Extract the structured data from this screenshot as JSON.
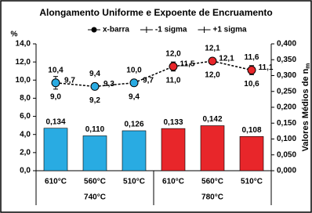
{
  "chart_data": {
    "type": "bar-line",
    "title": "Alongamento Uniforme e Expoente de Encruamento",
    "ylabel": "%",
    "y2label": {
      "text": "Valores Médios de n",
      "subscript": "m"
    },
    "categories": [
      "610°C",
      "560°C",
      "510°C",
      "610°C",
      "560°C",
      "510°C"
    ],
    "category_groups": [
      "740°C",
      "780°C"
    ],
    "ylim": [
      0,
      14
    ],
    "yticks": [
      {
        "value": 0,
        "label": "0,0"
      },
      {
        "value": 2,
        "label": "2,0"
      },
      {
        "value": 4,
        "label": "4,0"
      },
      {
        "value": 6,
        "label": "6,0"
      },
      {
        "value": 8,
        "label": "8,0"
      },
      {
        "value": 10,
        "label": "10,0"
      },
      {
        "value": 12,
        "label": "12,0"
      },
      {
        "value": 14,
        "label": "14,0"
      }
    ],
    "y2lim": [
      0,
      0.4
    ],
    "y2ticks": [
      {
        "value": 0,
        "label": "0,000"
      },
      {
        "value": 0.05,
        "label": "0,050"
      },
      {
        "value": 0.1,
        "label": "0,100"
      },
      {
        "value": 0.15,
        "label": "0,150"
      },
      {
        "value": 0.2,
        "label": "0,200"
      },
      {
        "value": 0.25,
        "label": "0,250"
      },
      {
        "value": 0.3,
        "label": "0,300"
      },
      {
        "value": 0.35,
        "label": "0,350"
      },
      {
        "value": 0.4,
        "label": "0,400"
      }
    ],
    "bars": {
      "axis": "y2",
      "colors": [
        "#29abe2",
        "#29abe2",
        "#29abe2",
        "#e8262a",
        "#e8262a",
        "#e8262a"
      ],
      "values": [
        0.134,
        0.11,
        0.126,
        0.133,
        0.142,
        0.108
      ],
      "value_labels": [
        "0,134",
        "0,110",
        "0,126",
        "0,133",
        "0,142",
        "0,108"
      ]
    },
    "series": [
      {
        "name": "x-barra",
        "color": "#000000",
        "values": [
          9.7,
          9.3,
          9.7,
          11.5,
          12.1,
          11.1
        ],
        "value_labels": [
          "9,7",
          "9,3",
          "9,7",
          "11,5",
          "12,1",
          "11,1"
        ]
      },
      {
        "name": "-1 sigma",
        "color": "#000000",
        "values": [
          9.0,
          9.2,
          9.4,
          11.0,
          12.0,
          10.6
        ],
        "value_labels": [
          "9,0",
          "9,2",
          "9,4",
          "11,0",
          "12,0",
          "10,6"
        ]
      },
      {
        "name": "+1 sigma",
        "color": "#000000",
        "values": [
          10.4,
          9.4,
          10.0,
          12.0,
          12.1,
          11.6
        ],
        "value_labels": [
          "10,4",
          "9,4",
          "10,0",
          "12,0",
          "12,1",
          "11,6"
        ]
      }
    ]
  }
}
